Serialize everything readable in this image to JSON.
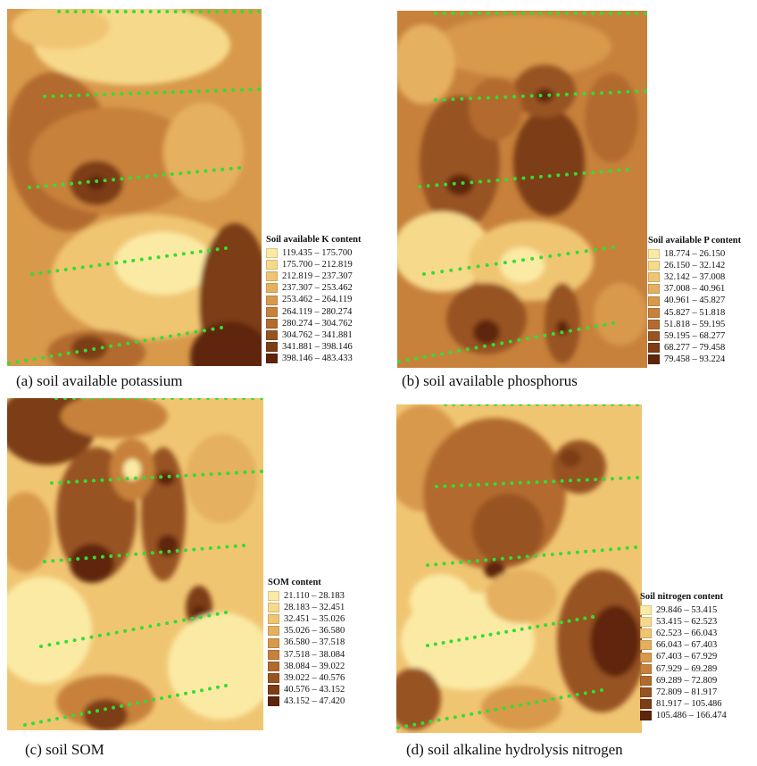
{
  "panels": [
    {
      "id": "a",
      "caption": "(a)  soil available potassium",
      "legend_title": "Soil available K content",
      "legend_items": [
        "119.435 – 175.700",
        "175.700 – 212.819",
        "212.819 – 237.307",
        "237.307 – 253.462",
        "253.462 – 264.119",
        "264.119 – 280.274",
        "280.274 – 304.762",
        "304.762 – 341.881",
        "341.881 – 398.146",
        "398.146 – 483.433"
      ]
    },
    {
      "id": "b",
      "caption": "(b)  soil available phosphorus",
      "legend_title": "Soil available P content",
      "legend_items": [
        "18.774 – 26.150",
        "26.150 – 32.142",
        "32.142 – 37.008",
        "37.008 – 40.961",
        "40.961 – 45.827",
        "45.827 – 51.818",
        "51.818 – 59.195",
        "59.195 – 68.277",
        "68.277 – 79.458",
        "79.458 – 93.224"
      ]
    },
    {
      "id": "c",
      "caption": "(c)  soil SOM",
      "legend_title": "SOM content",
      "legend_items": [
        "21.110 – 28.183",
        "28.183 – 32.451",
        "32.451 – 35.026",
        "35.026 – 36.580",
        "36.580 – 37.518",
        "37.518 – 38.084",
        "38.084 – 39.022",
        "39.022 – 40.576",
        "40.576 – 43.152",
        "43.152 – 47.420"
      ]
    },
    {
      "id": "d",
      "caption": "(d)  soil alkaline hydrolysis nitrogen",
      "legend_title": "Soil nitrogen content",
      "legend_items": [
        "29.846 – 53.415",
        "53.415 – 62.523",
        "62.523 – 66.043",
        "66.043 – 67.403",
        "67.403 – 67.929",
        "67.929 – 69.289",
        "69.289 – 72.809",
        "72.809 – 81.917",
        "81.917 – 105.486",
        "105.486 – 166.474"
      ]
    }
  ],
  "colors": {
    "ramp": [
      "#fbeaa4",
      "#f7d98b",
      "#f0c572",
      "#e5b05e",
      "#d8994b",
      "#c7813b",
      "#b26a2e",
      "#985322",
      "#7d3d16",
      "#5e250b"
    ],
    "sample_points": "#33dd33"
  }
}
